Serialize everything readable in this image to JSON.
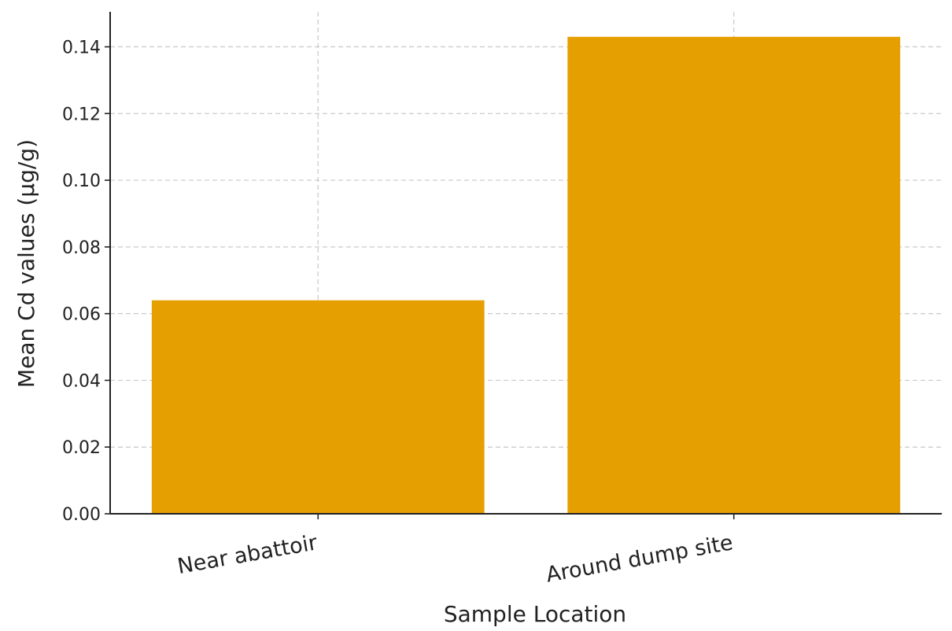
{
  "chart_data": {
    "type": "bar",
    "categories": [
      "Near abattoir",
      "Around dump site"
    ],
    "values": [
      0.064,
      0.143
    ],
    "title": "",
    "xlabel": "Sample Location",
    "ylabel": "Mean Cd values (µg/g)",
    "ylim": [
      0,
      0.15
    ],
    "yticks": [
      "0.00",
      "0.02",
      "0.04",
      "0.06",
      "0.08",
      "0.10",
      "0.12",
      "0.14"
    ],
    "grid": true,
    "bar_color": "#E69F00",
    "xtick_rotation_deg": -10
  }
}
